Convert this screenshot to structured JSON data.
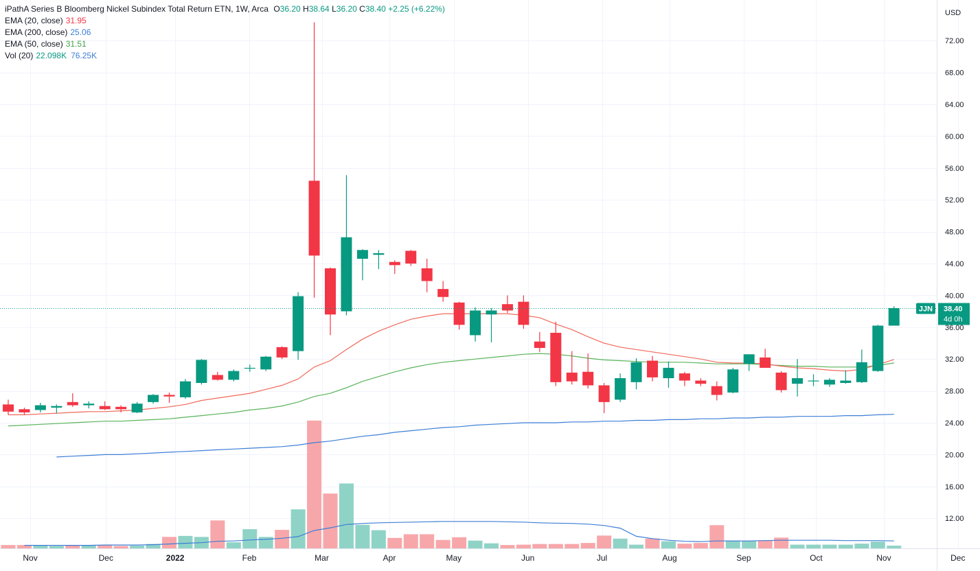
{
  "colors": {
    "up": "#089981",
    "down": "#f23645",
    "up_vol": "#8fd3c7",
    "down_vol": "#f7a7aa",
    "ema20": "#f0695a",
    "ema200": "#3d7ed6",
    "ema50": "#59b359",
    "vol_ma": "#3d7ed6",
    "grid": "#f0f3fa",
    "axis_text": "#131722",
    "price_line": "#089981"
  },
  "header": {
    "title": "iPathA Series B Bloomberg Nickel Subindex Total Return ETN, 1W, Arca",
    "o_label": "O",
    "o_value": "36.20",
    "h_label": "H",
    "h_value": "38.64",
    "l_label": "L",
    "l_value": "36.20",
    "c_label": "C",
    "c_value": "38.40",
    "change": "+2.25 (+6.22%)"
  },
  "indicators": [
    {
      "label": "EMA (20, close)",
      "value": "31.95",
      "color": "#f0695a"
    },
    {
      "label": "EMA (200, close)",
      "value": "25.06",
      "color": "#3d7ed6"
    },
    {
      "label": "EMA (50, close)",
      "value": "31.51",
      "color": "#59b359"
    }
  ],
  "volume_indicator": {
    "label": "Vol (20)",
    "value": "22.098K",
    "ma_value": "76.25K"
  },
  "price_axis": {
    "currency": "USD",
    "ticks": [
      "72.00",
      "68.00",
      "64.00",
      "60.00",
      "56.00",
      "52.00",
      "48.00",
      "44.00",
      "40.00",
      "36.00",
      "32.00",
      "28.00",
      "24.00",
      "20.00",
      "16.00",
      "12.00"
    ],
    "tick_values": [
      72,
      68,
      64,
      60,
      56,
      52,
      48,
      44,
      40,
      36,
      32,
      28,
      24,
      20,
      16,
      12
    ]
  },
  "last_price": {
    "symbol": "JJN",
    "price": "38.40",
    "countdown": "4d 0h",
    "value": 38.4
  },
  "time_axis": {
    "labels": [
      "Nov",
      "Dec",
      "2022",
      "Feb",
      "Mar",
      "Apr",
      "May",
      "Jun",
      "Jul",
      "Aug",
      "Sep",
      "Oct",
      "Nov",
      "Dec"
    ],
    "label_week_index": [
      0.6,
      5.3,
      9.6,
      14.2,
      18.7,
      22.9,
      26.9,
      31.5,
      36.1,
      40.3,
      44.9,
      49.4,
      53.6,
      58.2
    ]
  },
  "chart_data": {
    "type": "candlestick",
    "title": "iPathA Series B Bloomberg Nickel Subindex Total Return ETN, 1W, Arca",
    "xlabel": "",
    "ylabel": "USD",
    "ylim": [
      9,
      75
    ],
    "candles": [
      {
        "o": 26.3,
        "h": 26.9,
        "l": 25.0,
        "c": 25.4
      },
      {
        "o": 25.7,
        "h": 25.9,
        "l": 25.0,
        "c": 25.3
      },
      {
        "o": 25.6,
        "h": 26.5,
        "l": 25.3,
        "c": 26.2
      },
      {
        "o": 25.9,
        "h": 26.3,
        "l": 25.2,
        "c": 26.1
      },
      {
        "o": 26.6,
        "h": 27.7,
        "l": 26.0,
        "c": 26.2
      },
      {
        "o": 26.2,
        "h": 26.7,
        "l": 25.8,
        "c": 26.4
      },
      {
        "o": 26.1,
        "h": 26.7,
        "l": 25.6,
        "c": 25.7
      },
      {
        "o": 26.0,
        "h": 26.2,
        "l": 25.3,
        "c": 25.7
      },
      {
        "o": 25.3,
        "h": 26.6,
        "l": 25.2,
        "c": 26.4
      },
      {
        "o": 26.6,
        "h": 27.6,
        "l": 26.4,
        "c": 27.5
      },
      {
        "o": 27.5,
        "h": 27.8,
        "l": 26.5,
        "c": 27.3
      },
      {
        "o": 27.2,
        "h": 29.5,
        "l": 27.0,
        "c": 29.2
      },
      {
        "o": 29.0,
        "h": 32.0,
        "l": 28.8,
        "c": 31.9
      },
      {
        "o": 30.0,
        "h": 30.4,
        "l": 29.3,
        "c": 29.4
      },
      {
        "o": 29.4,
        "h": 30.7,
        "l": 29.2,
        "c": 30.5
      },
      {
        "o": 30.8,
        "h": 31.3,
        "l": 30.4,
        "c": 30.9
      },
      {
        "o": 30.7,
        "h": 32.4,
        "l": 30.5,
        "c": 32.3
      },
      {
        "o": 33.5,
        "h": 33.6,
        "l": 32.0,
        "c": 32.2
      },
      {
        "o": 33.0,
        "h": 40.4,
        "l": 31.9,
        "c": 39.9
      },
      {
        "o": 54.4,
        "h": 74.3,
        "l": 39.7,
        "c": 45.0
      },
      {
        "o": 43.4,
        "h": 43.5,
        "l": 35.0,
        "c": 37.6
      },
      {
        "o": 38.0,
        "h": 55.1,
        "l": 37.5,
        "c": 47.3
      },
      {
        "o": 44.6,
        "h": 45.8,
        "l": 41.9,
        "c": 45.7
      },
      {
        "o": 45.1,
        "h": 45.7,
        "l": 43.3,
        "c": 45.3
      },
      {
        "o": 44.2,
        "h": 44.4,
        "l": 42.7,
        "c": 43.8
      },
      {
        "o": 45.6,
        "h": 45.7,
        "l": 43.7,
        "c": 44.0
      },
      {
        "o": 43.4,
        "h": 44.6,
        "l": 40.4,
        "c": 41.8
      },
      {
        "o": 40.8,
        "h": 41.8,
        "l": 39.2,
        "c": 39.8
      },
      {
        "o": 39.1,
        "h": 39.2,
        "l": 35.7,
        "c": 36.3
      },
      {
        "o": 35.0,
        "h": 38.5,
        "l": 34.2,
        "c": 38.1
      },
      {
        "o": 37.6,
        "h": 38.4,
        "l": 34.1,
        "c": 38.1
      },
      {
        "o": 38.9,
        "h": 40.0,
        "l": 37.8,
        "c": 38.1
      },
      {
        "o": 39.2,
        "h": 40.0,
        "l": 35.8,
        "c": 36.3
      },
      {
        "o": 34.2,
        "h": 35.4,
        "l": 32.9,
        "c": 33.4
      },
      {
        "o": 35.3,
        "h": 36.7,
        "l": 28.6,
        "c": 29.1
      },
      {
        "o": 30.3,
        "h": 33.0,
        "l": 28.8,
        "c": 29.2
      },
      {
        "o": 30.4,
        "h": 32.7,
        "l": 28.3,
        "c": 28.7
      },
      {
        "o": 28.7,
        "h": 29.0,
        "l": 25.2,
        "c": 26.6
      },
      {
        "o": 26.9,
        "h": 30.2,
        "l": 26.6,
        "c": 29.6
      },
      {
        "o": 29.1,
        "h": 32.1,
        "l": 28.2,
        "c": 31.6
      },
      {
        "o": 31.8,
        "h": 32.4,
        "l": 29.2,
        "c": 29.7
      },
      {
        "o": 29.6,
        "h": 31.7,
        "l": 28.4,
        "c": 30.9
      },
      {
        "o": 30.2,
        "h": 30.4,
        "l": 28.6,
        "c": 29.3
      },
      {
        "o": 29.3,
        "h": 29.6,
        "l": 28.6,
        "c": 28.9
      },
      {
        "o": 28.6,
        "h": 29.2,
        "l": 26.8,
        "c": 27.5
      },
      {
        "o": 27.8,
        "h": 30.9,
        "l": 27.7,
        "c": 30.7
      },
      {
        "o": 31.4,
        "h": 32.6,
        "l": 30.5,
        "c": 32.6
      },
      {
        "o": 32.2,
        "h": 33.3,
        "l": 30.9,
        "c": 30.9
      },
      {
        "o": 30.3,
        "h": 30.5,
        "l": 27.8,
        "c": 28.1
      },
      {
        "o": 28.9,
        "h": 32.0,
        "l": 27.3,
        "c": 29.6
      },
      {
        "o": 29.2,
        "h": 30.1,
        "l": 28.6,
        "c": 29.3
      },
      {
        "o": 28.8,
        "h": 29.6,
        "l": 28.5,
        "c": 29.4
      },
      {
        "o": 29.0,
        "h": 30.6,
        "l": 28.9,
        "c": 29.3
      },
      {
        "o": 29.1,
        "h": 33.2,
        "l": 29.0,
        "c": 31.6
      },
      {
        "o": 30.5,
        "h": 36.3,
        "l": 30.4,
        "c": 36.2
      },
      {
        "o": 36.2,
        "h": 38.64,
        "l": 36.2,
        "c": 38.4
      }
    ],
    "volume": [
      1.0,
      1.0,
      0.8,
      0.7,
      0.9,
      0.9,
      0.9,
      0.7,
      0.8,
      1.3,
      3.4,
      3.7,
      3.4,
      8.3,
      1.8,
      5.7,
      3.4,
      5.5,
      11.6,
      38.0,
      16.3,
      19.3,
      7.0,
      5.4,
      3.1,
      4.2,
      4.2,
      2.5,
      3.3,
      2.3,
      1.5,
      1.0,
      1.1,
      1.3,
      1.3,
      1.3,
      1.6,
      3.8,
      2.9,
      1.1,
      2.9,
      2.1,
      1.4,
      1.6,
      6.9,
      2.3,
      2.2,
      2.4,
      3.2,
      1.1,
      1.1,
      1.1,
      1.1,
      1.4,
      2.0,
      0.8
    ],
    "volume_ma": [
      null,
      0.9,
      0.9,
      0.9,
      0.9,
      0.9,
      1.0,
      1.0,
      1.0,
      1.1,
      1.3,
      1.5,
      1.7,
      2.1,
      2.2,
      2.5,
      2.7,
      3.0,
      3.5,
      5.3,
      6.1,
      7.1,
      7.4,
      7.6,
      7.7,
      7.8,
      7.9,
      8.0,
      8.0,
      8.0,
      8.0,
      7.9,
      7.8,
      7.6,
      7.5,
      7.4,
      7.2,
      6.8,
      6.0,
      3.6,
      2.9,
      2.4,
      2.1,
      2.0,
      2.2,
      2.2,
      2.2,
      2.3,
      2.4,
      2.4,
      2.4,
      2.4,
      2.3,
      2.3,
      2.3,
      2.2
    ],
    "ema20": [
      25.0,
      25.0,
      25.1,
      25.2,
      25.3,
      25.4,
      25.4,
      25.5,
      25.6,
      25.8,
      26.0,
      26.3,
      26.8,
      27.1,
      27.4,
      27.7,
      28.2,
      28.7,
      29.5,
      31.0,
      31.8,
      33.2,
      34.5,
      35.5,
      36.3,
      37.0,
      37.4,
      37.7,
      37.7,
      37.7,
      37.7,
      37.7,
      37.5,
      37.2,
      36.4,
      35.7,
      34.8,
      34.0,
      33.5,
      33.2,
      32.9,
      32.6,
      32.3,
      32.0,
      31.6,
      31.5,
      31.5,
      31.4,
      31.1,
      30.9,
      30.8,
      30.6,
      30.5,
      30.7,
      31.3,
      31.95
    ],
    "ema50": [
      23.6,
      23.7,
      23.8,
      23.9,
      24.0,
      24.1,
      24.2,
      24.2,
      24.3,
      24.4,
      24.5,
      24.7,
      24.9,
      25.1,
      25.3,
      25.6,
      25.8,
      26.1,
      26.6,
      27.3,
      27.7,
      28.4,
      29.2,
      29.8,
      30.4,
      30.9,
      31.3,
      31.6,
      31.8,
      32.0,
      32.2,
      32.4,
      32.6,
      32.7,
      32.6,
      32.4,
      32.1,
      31.9,
      31.8,
      31.7,
      31.6,
      31.6,
      31.6,
      31.5,
      31.4,
      31.4,
      31.4,
      31.3,
      31.2,
      31.1,
      31.1,
      31.0,
      31.0,
      31.0,
      31.2,
      31.51
    ],
    "ema200": [
      null,
      null,
      null,
      19.7,
      19.8,
      19.9,
      20.0,
      20.0,
      20.1,
      20.2,
      20.3,
      20.4,
      20.5,
      20.6,
      20.7,
      20.8,
      20.9,
      21.0,
      21.2,
      21.5,
      21.7,
      22.0,
      22.3,
      22.5,
      22.8,
      23.0,
      23.2,
      23.4,
      23.5,
      23.7,
      23.8,
      23.9,
      24.0,
      24.0,
      24.0,
      24.1,
      24.1,
      24.2,
      24.2,
      24.3,
      24.3,
      24.4,
      24.4,
      24.5,
      24.5,
      24.6,
      24.6,
      24.7,
      24.7,
      24.8,
      24.8,
      24.8,
      24.9,
      24.9,
      25.0,
      25.06
    ]
  }
}
